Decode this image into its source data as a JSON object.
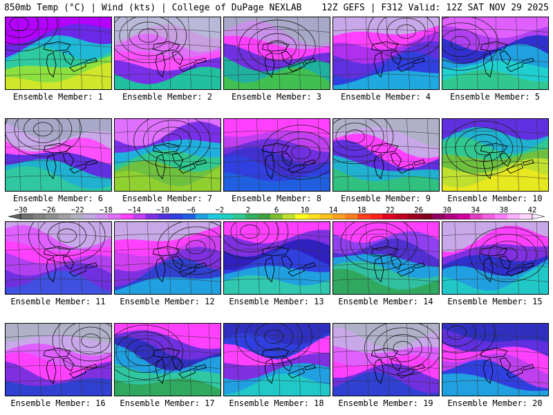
{
  "header": {
    "left": "850mb Temp (°C) | Wind (kts) | College of DuPage NEXLAB",
    "right": "12Z GEFS | F312 Valid: 12Z SAT NOV 29 2025"
  },
  "members": [
    {
      "label": "Ensemble Member: 1",
      "palette": [
        "#b400ff",
        "#6a28e8",
        "#1fb8d8",
        "#2ecba0",
        "#8ce040",
        "#cfe62a"
      ]
    },
    {
      "label": "Ensemble Member: 2",
      "palette": [
        "#b8b8d8",
        "#c8a0e0",
        "#e070f8",
        "#ff50ff",
        "#7a30e8",
        "#20c0a0"
      ]
    },
    {
      "label": "Ensemble Member: 3",
      "palette": [
        "#a8a8c8",
        "#c890e8",
        "#ff40ff",
        "#7030e0",
        "#20b0a0",
        "#40c050"
      ]
    },
    {
      "label": "Ensemble Member: 4",
      "palette": [
        "#c8a8e8",
        "#ff40ff",
        "#b030f0",
        "#6030e0",
        "#3040e0",
        "#20a8e0"
      ]
    },
    {
      "label": "Ensemble Member: 5",
      "palette": [
        "#e060ff",
        "#b040f0",
        "#3030d0",
        "#20a0e0",
        "#20d0d0",
        "#30c890"
      ]
    },
    {
      "label": "Ensemble Member: 6",
      "palette": [
        "#a8a8c8",
        "#c8a8e8",
        "#ff50ff",
        "#6030e0",
        "#20b0d0",
        "#30c8a0"
      ]
    },
    {
      "label": "Ensemble Member: 7",
      "palette": [
        "#e070ff",
        "#7a30e8",
        "#20b0e0",
        "#30c890",
        "#70c040",
        "#90d030"
      ]
    },
    {
      "label": "Ensemble Member: 8",
      "palette": [
        "#ff40ff",
        "#c040f0",
        "#7030e0",
        "#4030d0",
        "#3040e0",
        "#2060e0"
      ]
    },
    {
      "label": "Ensemble Member: 9",
      "palette": [
        "#b0b0c8",
        "#c8a8e8",
        "#ff40ff",
        "#6030e0",
        "#20b0d0",
        "#30c080"
      ]
    },
    {
      "label": "Ensemble Member: 10",
      "palette": [
        "#6030e0",
        "#20b0d0",
        "#30c890",
        "#70c040",
        "#c0e030",
        "#e8e820"
      ]
    },
    {
      "label": "Ensemble Member: 11",
      "palette": [
        "#c8a8e8",
        "#e060ff",
        "#ff40ff",
        "#b040f0",
        "#7030e0",
        "#4050e0"
      ]
    },
    {
      "label": "Ensemble Member: 12",
      "palette": [
        "#c8a8e8",
        "#ff40ff",
        "#d040f0",
        "#8030e0",
        "#3040d0",
        "#20a0e0"
      ]
    },
    {
      "label": "Ensemble Member: 13",
      "palette": [
        "#ff40ff",
        "#8030e0",
        "#3020c0",
        "#3040e0",
        "#20a0e0",
        "#30c8b0"
      ]
    },
    {
      "label": "Ensemble Member: 14",
      "palette": [
        "#ff40ff",
        "#9040f0",
        "#5030d0",
        "#20a0e0",
        "#30c0a0",
        "#30a860"
      ]
    },
    {
      "label": "Ensemble Member: 15",
      "palette": [
        "#c8a8e8",
        "#ff40ff",
        "#8030e0",
        "#3030d0",
        "#20a0e0",
        "#20c8c8"
      ]
    },
    {
      "label": "Ensemble Member: 16",
      "palette": [
        "#b0b0c8",
        "#c8a8e8",
        "#e060ff",
        "#ff40ff",
        "#8030e0",
        "#3040d0"
      ]
    },
    {
      "label": "Ensemble Member: 17",
      "palette": [
        "#ff40ff",
        "#7030e0",
        "#3030c0",
        "#20a0e0",
        "#30c8a0",
        "#30a860"
      ]
    },
    {
      "label": "Ensemble Member: 18",
      "palette": [
        "#3030c0",
        "#3040e0",
        "#ff40ff",
        "#8030e0",
        "#20a0e0",
        "#20c8c8"
      ]
    },
    {
      "label": "Ensemble Member: 19",
      "palette": [
        "#b0b0c8",
        "#c8a8e8",
        "#e060ff",
        "#ff40ff",
        "#7030e0",
        "#3040d0"
      ]
    },
    {
      "label": "Ensemble Member: 20",
      "palette": [
        "#3030c0",
        "#6030e0",
        "#ff40ff",
        "#c040f0",
        "#3040e0",
        "#20a0e0"
      ]
    }
  ],
  "colorbar": {
    "ticks": [
      "−30",
      "−26",
      "−22",
      "−18",
      "−14",
      "−10",
      "−6",
      "−2",
      "2",
      "6",
      "10",
      "14",
      "18",
      "22",
      "26",
      "30",
      "34",
      "38",
      "42"
    ],
    "colors": [
      "#707070",
      "#808080",
      "#909090",
      "#a0a0a0",
      "#b0b0c0",
      "#c0a8e0",
      "#d090f0",
      "#e070ff",
      "#ff40ff",
      "#c040f0",
      "#8030e0",
      "#5030e0",
      "#3040e0",
      "#2060e0",
      "#20a0e0",
      "#20c8e0",
      "#20d0c0",
      "#30c890",
      "#30b060",
      "#40a040",
      "#80c030",
      "#c0e030",
      "#ffff20",
      "#ffe020",
      "#ffc020",
      "#ffa020",
      "#ff8020",
      "#ff4020",
      "#ff2020",
      "#e00020",
      "#c00020",
      "#a00020",
      "#800020",
      "#900060",
      "#b00080",
      "#d000a0",
      "#e040c0",
      "#f060e0",
      "#ff80ff",
      "#ffb0ff",
      "#ffd8ff"
    ]
  }
}
